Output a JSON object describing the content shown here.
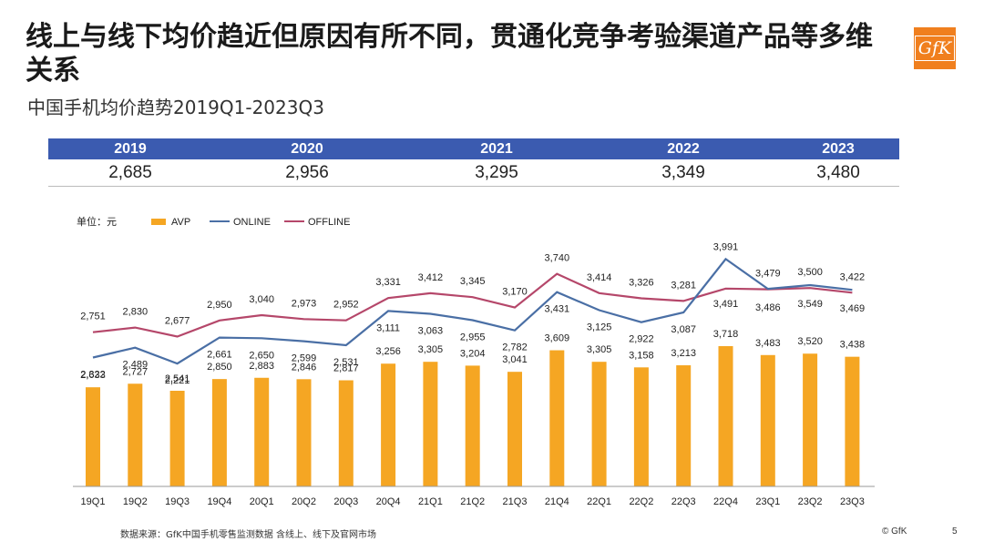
{
  "header": {
    "title": "线上与线下均价趋近但原因有所不同，贯通化竞争考验渠道产品等多维关系",
    "subtitle": "中国手机均价趋势2019Q1-2023Q3",
    "logo": "GfK"
  },
  "years": [
    {
      "label": "2019",
      "value": "2,685"
    },
    {
      "label": "2020",
      "value": "2,956"
    },
    {
      "label": "2021",
      "value": "3,295"
    },
    {
      "label": "2022",
      "value": "3,349"
    },
    {
      "label": "2023",
      "value": "3,480"
    }
  ],
  "colors": {
    "avp": "#f5a623",
    "online": "#4a6fa5",
    "offline": "#b5476a",
    "yearbar": "#3b5bb0"
  },
  "chart_data": {
    "type": "bar",
    "unit_label": "单位：元",
    "categories": [
      "19Q1",
      "19Q2",
      "19Q3",
      "19Q4",
      "20Q1",
      "20Q2",
      "20Q3",
      "20Q4",
      "21Q1",
      "21Q2",
      "21Q3",
      "21Q4",
      "22Q1",
      "22Q2",
      "22Q3",
      "22Q4",
      "23Q1",
      "23Q2",
      "23Q3"
    ],
    "series": [
      {
        "name": "AVP",
        "type": "bar",
        "values": [
          2633,
          2727,
          2541,
          2850,
          2883,
          2846,
          2817,
          3256,
          3305,
          3204,
          3041,
          3609,
          3305,
          3158,
          3213,
          3718,
          3483,
          3520,
          3438
        ],
        "labels": [
          "2,633",
          "2,727",
          "2,541",
          "2,850",
          "2,883",
          "2,846",
          "2,817",
          "3,256",
          "3,305",
          "3,204",
          "3,041",
          "3,609",
          "3,305",
          "3,158",
          "3,213",
          "3,718",
          "3,483",
          "3,520",
          "3,438"
        ]
      },
      {
        "name": "ONLINE",
        "type": "line",
        "values": [
          2322,
          2489,
          2221,
          2661,
          2650,
          2599,
          2531,
          3111,
          3063,
          2955,
          2782,
          3431,
          3125,
          2922,
          3087,
          3991,
          3486,
          3549,
          3469
        ],
        "labels": [
          "2,322",
          "2,489",
          "2,221",
          "2,661",
          "2,650",
          "2,599",
          "2,531",
          "3,111",
          "3,063",
          "2,955",
          "2,782",
          "3,431",
          "3,125",
          "2,922",
          "3,087",
          "3,991",
          "3,486",
          "3,549",
          "3,469"
        ]
      },
      {
        "name": "OFFLINE",
        "type": "line",
        "values": [
          2751,
          2830,
          2677,
          2950,
          3040,
          2973,
          2952,
          3331,
          3412,
          3345,
          3170,
          3740,
          3414,
          3326,
          3281,
          3491,
          3479,
          3500,
          3422
        ],
        "labels": [
          "2,751",
          "2,830",
          "2,677",
          "2,950",
          "3,040",
          "2,973",
          "2,952",
          "3,331",
          "3,412",
          "3,345",
          "3,170",
          "3,740",
          "3,414",
          "3,326",
          "3,281",
          "3,491",
          "3,479",
          "3,500",
          "3,422"
        ]
      }
    ],
    "legend_position": "top-left",
    "grid": false
  },
  "footer": {
    "source": "数据来源：GfK中国手机零售监测数据 含线上、线下及官网市场",
    "copyright": "© GfK",
    "page": "5"
  }
}
